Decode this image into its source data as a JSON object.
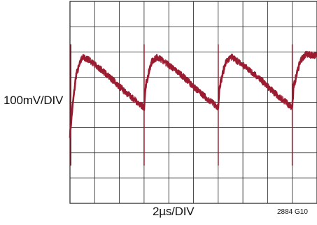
{
  "chart_data": {
    "type": "line",
    "title": "",
    "x_scale_label": "2µs/DIV",
    "y_scale_label": "100mV/DIV",
    "figure_code": "2884 G10",
    "grid": true,
    "x_divisions": 10,
    "y_divisions": 8,
    "series_color": "#9b1b30",
    "grid_color": "#222222",
    "x_unit": "µs",
    "y_unit": "mV",
    "xlim": [
      0,
      20
    ],
    "ylim": [
      -400,
      400
    ],
    "series": [
      {
        "period_us": 6.0,
        "waveform": "sawtooth ripple",
        "points": [
          {
            "x": 0.0,
            "y": -130
          },
          {
            "x": 0.2,
            "y": -20
          },
          {
            "x": 0.5,
            "y": 110
          },
          {
            "x": 1.0,
            "y": 180
          },
          {
            "x": 1.5,
            "y": 170
          },
          {
            "x": 3.0,
            "y": 110
          },
          {
            "x": 4.5,
            "y": 40
          },
          {
            "x": 5.6,
            "y": -5
          },
          {
            "x": 6.0,
            "y": -20
          },
          {
            "x": 6.1,
            "y": 60
          },
          {
            "x": 6.6,
            "y": 160
          },
          {
            "x": 7.1,
            "y": 180
          },
          {
            "x": 9.0,
            "y": 110
          },
          {
            "x": 10.5,
            "y": 40
          },
          {
            "x": 11.6,
            "y": -5
          },
          {
            "x": 12.0,
            "y": -20
          },
          {
            "x": 12.1,
            "y": 60
          },
          {
            "x": 12.6,
            "y": 160
          },
          {
            "x": 13.1,
            "y": 180
          },
          {
            "x": 15.0,
            "y": 110
          },
          {
            "x": 16.5,
            "y": 40
          },
          {
            "x": 17.6,
            "y": -5
          },
          {
            "x": 18.0,
            "y": -20
          },
          {
            "x": 18.1,
            "y": 60
          },
          {
            "x": 18.6,
            "y": 160
          },
          {
            "x": 19.1,
            "y": 190
          },
          {
            "x": 20.0,
            "y": 185
          }
        ],
        "spike_times_us": [
          0.0,
          6.0,
          12.0,
          18.0
        ],
        "spike_range_mV": [
          -250,
          230
        ]
      }
    ]
  }
}
